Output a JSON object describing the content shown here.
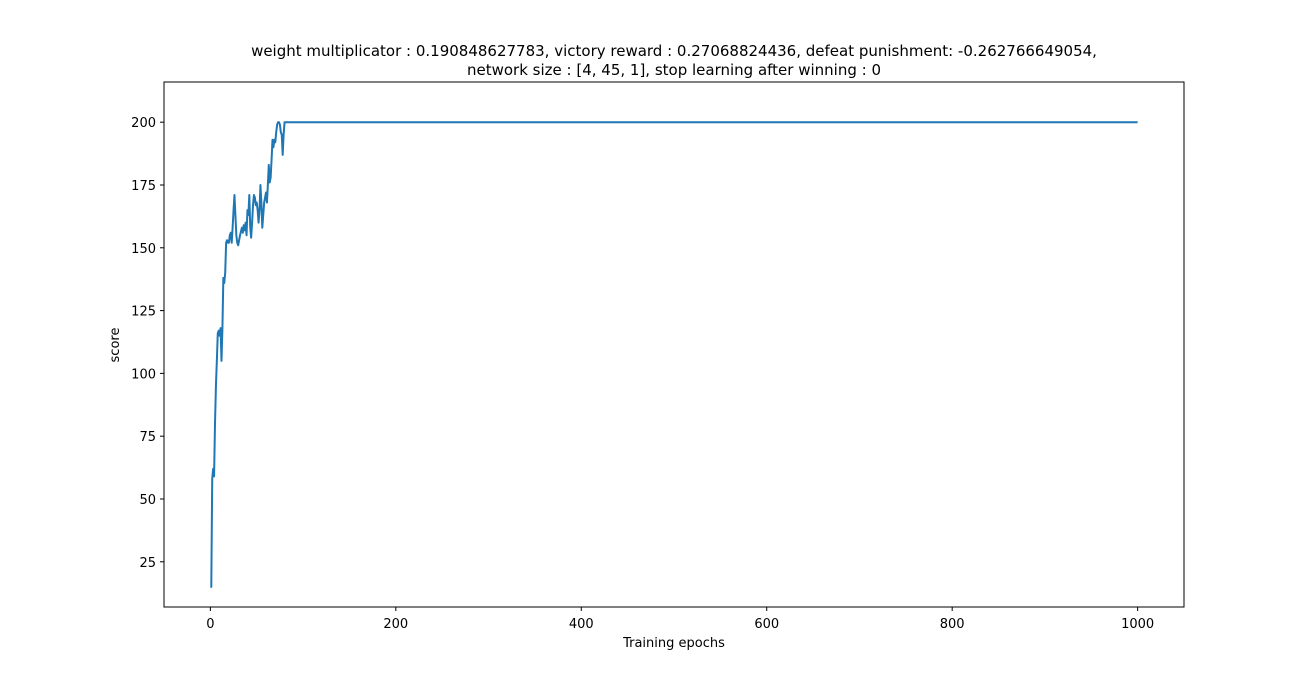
{
  "chart_data": {
    "type": "line",
    "title": "weight multiplicator : 0.190848627783, victory reward : 0.27068824436, defeat punishment: -0.262766649054,",
    "subtitle": "network size : [4, 45, 1], stop learning after winning : 0",
    "xlabel": "Training epochs",
    "ylabel": "score",
    "xlim": [
      -50,
      1050
    ],
    "ylim": [
      7,
      216
    ],
    "xticks": [
      0,
      200,
      400,
      600,
      800,
      1000
    ],
    "yticks": [
      25,
      50,
      75,
      100,
      125,
      150,
      175,
      200
    ],
    "grid": false,
    "line_color": "#1f77b4",
    "series": [
      {
        "x": [
          0,
          1,
          2,
          3,
          4,
          5,
          6,
          7,
          8,
          9,
          10,
          11,
          12,
          13,
          14,
          15,
          16,
          17,
          18,
          19,
          20,
          21,
          22,
          23,
          24,
          25,
          26,
          27,
          28,
          29,
          30,
          32,
          34,
          35,
          36,
          37,
          38,
          39,
          40,
          41,
          42,
          43,
          44,
          45,
          46,
          47,
          48,
          49,
          50,
          51,
          52,
          53,
          54,
          55,
          56,
          57,
          58,
          59,
          60,
          61,
          62,
          63,
          64,
          65,
          66,
          67,
          68,
          69,
          70,
          71,
          72,
          73,
          74,
          75,
          76,
          77,
          78,
          79,
          80,
          81,
          82,
          83,
          84,
          100,
          200,
          400,
          600,
          800,
          1000
        ],
        "y": [
          15,
          15,
          58,
          62,
          59,
          80,
          95,
          105,
          116,
          117,
          115,
          118,
          105,
          118,
          138,
          136,
          140,
          152,
          153,
          152,
          152,
          155,
          156,
          152,
          158,
          165,
          171,
          163,
          155,
          152,
          151,
          155,
          158,
          156,
          159,
          157,
          160,
          155,
          165,
          163,
          171,
          158,
          154,
          160,
          167,
          171,
          170,
          167,
          168,
          165,
          160,
          165,
          175,
          168,
          158,
          163,
          168,
          170,
          172,
          168,
          175,
          183,
          176,
          178,
          185,
          193,
          190,
          193,
          192,
          196,
          199,
          200,
          200,
          199,
          196,
          195,
          187,
          195,
          200,
          200,
          200,
          200,
          200,
          200,
          200,
          200,
          200,
          200,
          200
        ]
      }
    ]
  }
}
